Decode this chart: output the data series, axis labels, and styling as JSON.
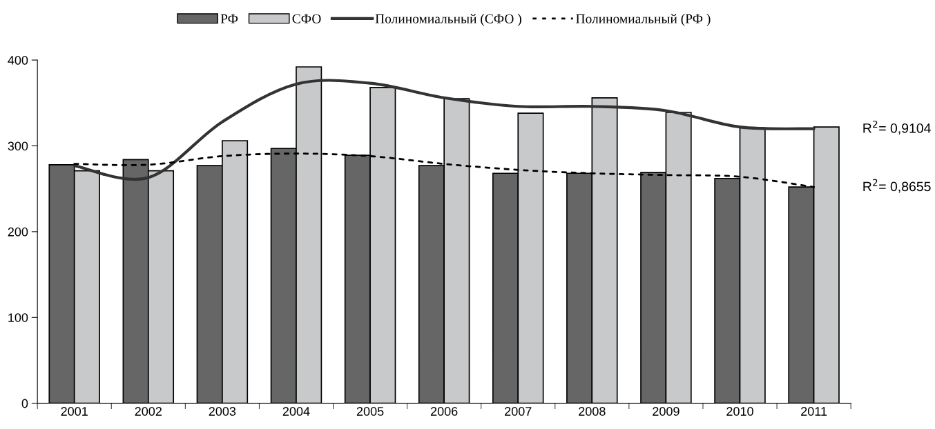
{
  "chart_data": {
    "type": "bar",
    "categories": [
      "2001",
      "2002",
      "2003",
      "2004",
      "2005",
      "2006",
      "2007",
      "2008",
      "2009",
      "2010",
      "2011"
    ],
    "series": [
      {
        "name": "РФ",
        "color": "#666666",
        "values": [
          278,
          284,
          277,
          297,
          289,
          277,
          268,
          268,
          269,
          262,
          252
        ]
      },
      {
        "name": "СФО",
        "color": "#c8c9cb",
        "values": [
          271,
          271,
          306,
          392,
          368,
          355,
          338,
          356,
          339,
          321,
          322
        ]
      },
      {
        "name": "Полиномиальный (СФО )",
        "type": "line",
        "color": "#333333",
        "line_style": "solid",
        "values": [
          277,
          263,
          328,
          372,
          373,
          356,
          346,
          346,
          341,
          322,
          320
        ]
      },
      {
        "name": "Полиномиальный (РФ )",
        "type": "line",
        "color": "#000000",
        "line_style": "dashed",
        "values": [
          279,
          278,
          288,
          291,
          288,
          279,
          272,
          268,
          266,
          264,
          252
        ]
      }
    ],
    "ylim": [
      0,
      400
    ],
    "yticks": [
      0,
      100,
      200,
      300,
      400
    ],
    "grid": false,
    "legend": "top",
    "marker": "none",
    "annotations": [
      "R$^{2}$= 0,9104",
      "R$^{2}$= 0,8655"
    ]
  }
}
